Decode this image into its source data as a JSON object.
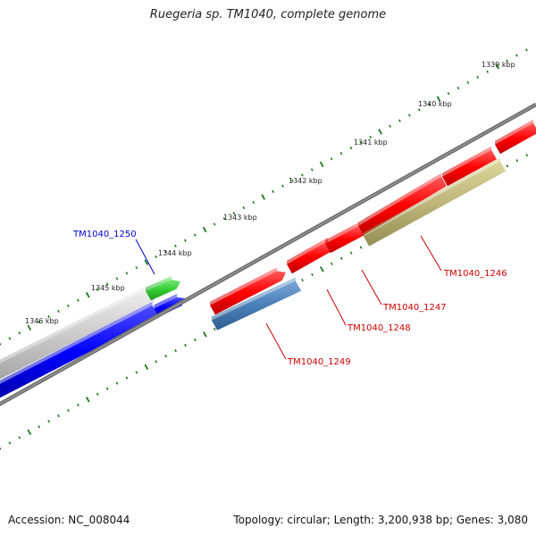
{
  "title": "Ruegeria sp. TM1040, complete genome",
  "footer": {
    "accession": "Accession: NC_008044",
    "summary": "Topology: circular; Length: 3,200,938 bp; Genes: 3,080"
  },
  "ticks": [
    "1339 kbp",
    "1340 kbp",
    "1341 kbp",
    "1342 kbp",
    "1343 kbp",
    "1344 kbp",
    "1345 kbp",
    "1346 kbp"
  ],
  "genes": [
    {
      "label": "TM1040_1250",
      "color": "#0000cc"
    },
    {
      "label": "TM1040_1249",
      "color": "#cc0000"
    },
    {
      "label": "TM1040_1248",
      "color": "#cc0000"
    },
    {
      "label": "TM1040_1247",
      "color": "#cc0000"
    },
    {
      "label": "TM1040_1246",
      "color": "#cc0000"
    }
  ],
  "colors": {
    "backbone": "#707070",
    "forward_feature": "#ff0000",
    "reverse_feature": "#0000ff",
    "highlight_feature": "#33cc33",
    "tick": "#1a7a1a",
    "track_gray": "#c8c8c8",
    "track_blue": "#4a7fb8",
    "track_olive": "#bdb57a"
  }
}
